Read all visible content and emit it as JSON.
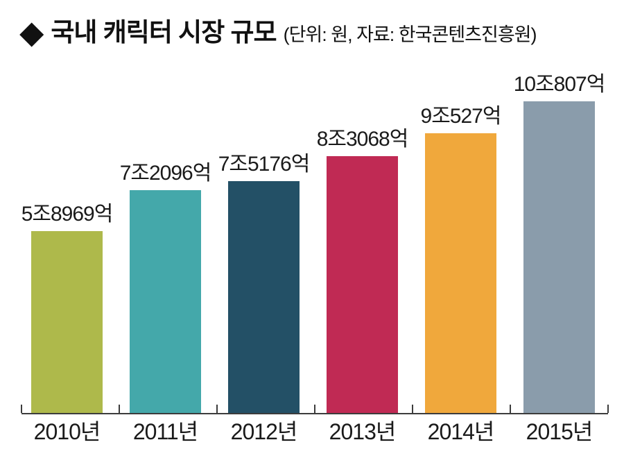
{
  "header": {
    "bullet": "◆",
    "title": "국내 캐릭터 시장 규모",
    "note": "(단위: 원, 자료: 한국콘텐츠진흥원)"
  },
  "chart_data": {
    "type": "bar",
    "title": "국내 캐릭터 시장 규모",
    "unit": "원",
    "source": "한국콘텐츠진흥원",
    "categories": [
      "2010년",
      "2011년",
      "2012년",
      "2013년",
      "2014년",
      "2015년"
    ],
    "values_eokwon": [
      58969,
      72096,
      75176,
      83068,
      90527,
      100807
    ],
    "value_labels": [
      "5조8969억",
      "7조2096억",
      "7조5176억",
      "8조3068억",
      "9조527억",
      "10조807억"
    ],
    "bar_colors": [
      "#aeb94b",
      "#44a8aa",
      "#235066",
      "#c02a54",
      "#f0a83c",
      "#8a9cab"
    ],
    "ylim": [
      0,
      100807
    ],
    "grid": false,
    "legend": false,
    "xlabel": "",
    "ylabel": ""
  },
  "colors": {
    "background": "#ffffff",
    "text": "#1a1a1a",
    "axis": "#3c3c3c"
  }
}
